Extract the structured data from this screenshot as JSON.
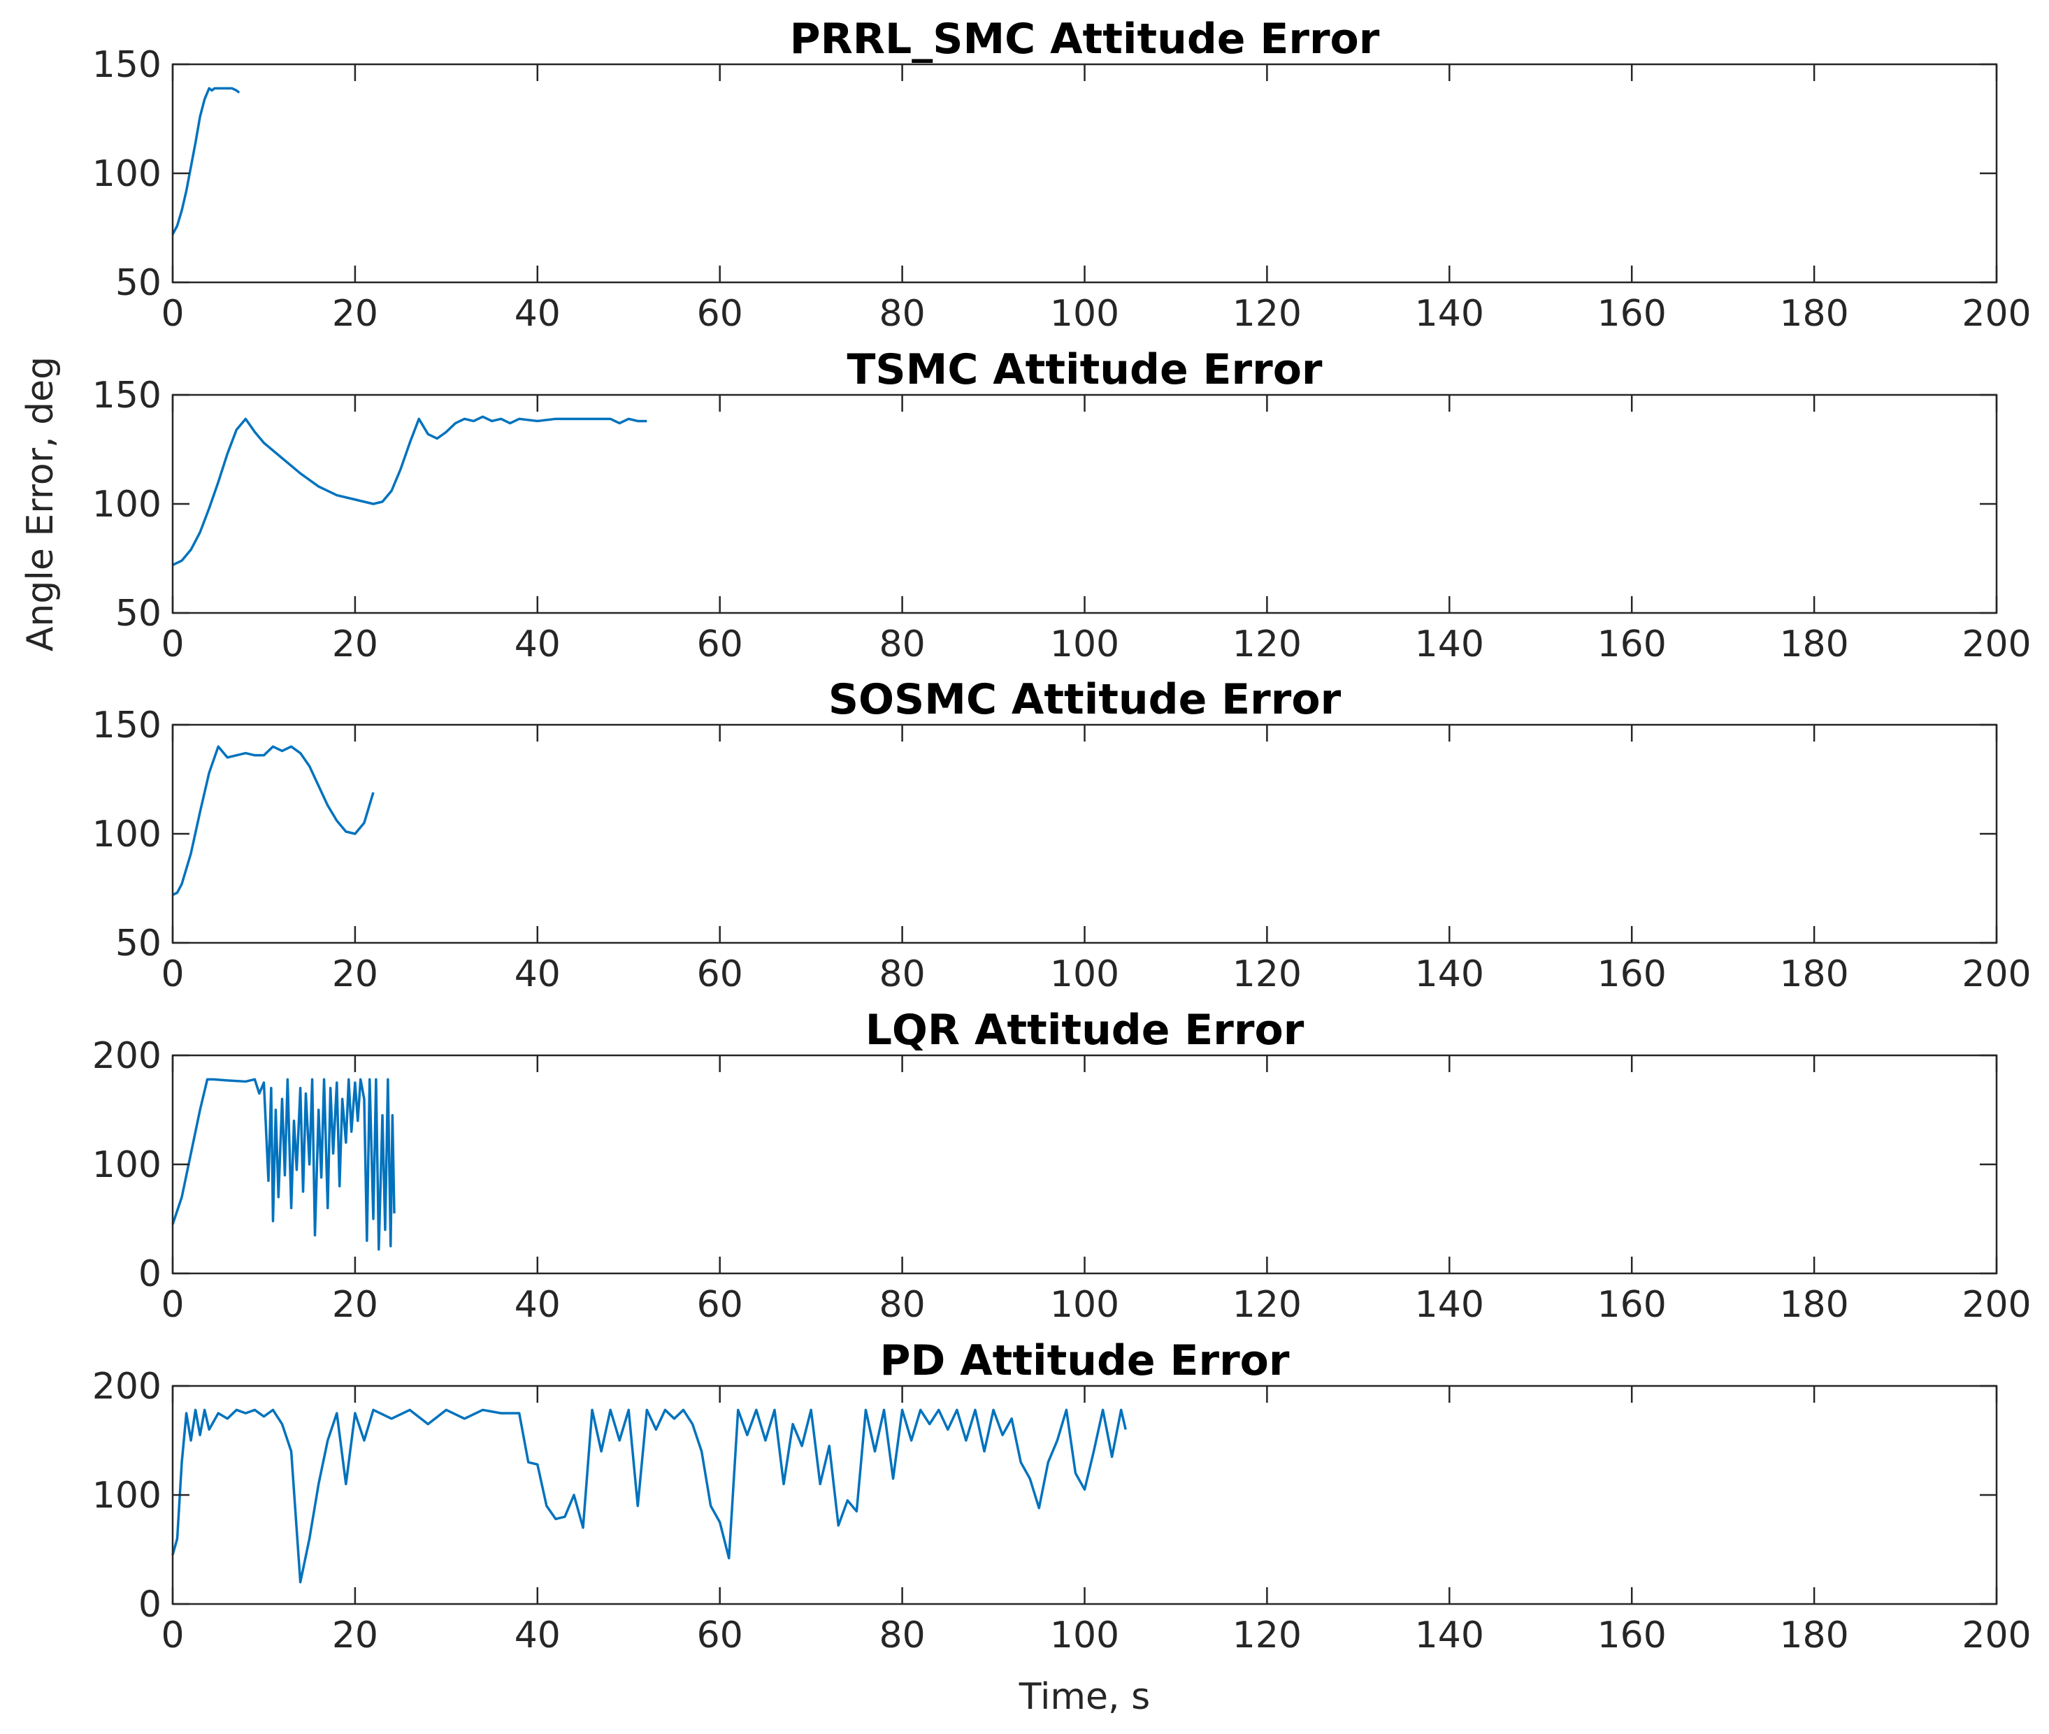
{
  "chart_data": [
    {
      "type": "line",
      "title": "PRRL_SMC Attitude Error",
      "x": [
        0,
        0.5,
        1,
        1.5,
        2,
        2.5,
        3,
        3.5,
        4,
        4.3,
        4.6,
        5,
        5.5,
        6,
        6.5,
        7,
        7.3
      ],
      "series": [
        {
          "color": "#0072bd",
          "values": [
            72,
            76,
            83,
            92,
            103,
            114,
            126,
            134,
            139,
            138,
            139,
            139,
            139,
            139,
            139,
            138,
            137
          ]
        }
      ],
      "xlim": [
        0,
        200
      ],
      "xticks": [
        0,
        20,
        40,
        60,
        80,
        100,
        120,
        140,
        160,
        180,
        200
      ],
      "ylim": [
        50,
        150
      ],
      "yticks": [
        50,
        100,
        150
      ]
    },
    {
      "type": "line",
      "title": "TSMC Attitude Error",
      "ylabel": "Angle Error, deg",
      "x": [
        0,
        1,
        2,
        3,
        4,
        5,
        6,
        7,
        8,
        9,
        10,
        12,
        14,
        16,
        18,
        20,
        22,
        23,
        24,
        25,
        26,
        27,
        28,
        29,
        30,
        31,
        32,
        33,
        34,
        35,
        36,
        37,
        38,
        40,
        42,
        44,
        46,
        48,
        49,
        50,
        51,
        52
      ],
      "series": [
        {
          "color": "#0072bd",
          "values": [
            72,
            74,
            79,
            87,
            98,
            110,
            123,
            134,
            139,
            133,
            128,
            121,
            114,
            108,
            104,
            102,
            100,
            101,
            106,
            116,
            128,
            139,
            132,
            130,
            133,
            137,
            139,
            138,
            140,
            138,
            139,
            137,
            139,
            138,
            139,
            139,
            139,
            139,
            137,
            139,
            138,
            138
          ]
        }
      ],
      "xlim": [
        0,
        200
      ],
      "xticks": [
        0,
        20,
        40,
        60,
        80,
        100,
        120,
        140,
        160,
        180,
        200
      ],
      "ylim": [
        50,
        150
      ],
      "yticks": [
        50,
        100,
        150
      ]
    },
    {
      "type": "line",
      "title": "SOSMC Attitude Error",
      "x": [
        0,
        0.5,
        1,
        2,
        3,
        4,
        5,
        6,
        7,
        8,
        9,
        10,
        11,
        12,
        13,
        14,
        15,
        16,
        17,
        18,
        19,
        20,
        21,
        22
      ],
      "series": [
        {
          "color": "#0072bd",
          "values": [
            72,
            73,
            77,
            91,
            110,
            128,
            140,
            135,
            136,
            137,
            136,
            136,
            140,
            138,
            140,
            137,
            131,
            122,
            113,
            106,
            101,
            100,
            105,
            119
          ]
        }
      ],
      "xlim": [
        0,
        200
      ],
      "xticks": [
        0,
        20,
        40,
        60,
        80,
        100,
        120,
        140,
        160,
        180,
        200
      ],
      "ylim": [
        50,
        150
      ],
      "yticks": [
        50,
        100,
        150
      ]
    },
    {
      "type": "line",
      "title": "LQR Attitude Error",
      "x": [
        0,
        1,
        2,
        3,
        3.8,
        4.5,
        6,
        8,
        9,
        9.5,
        10,
        10.5,
        10.8,
        11,
        11.3,
        11.6,
        12,
        12.3,
        12.6,
        13,
        13.3,
        13.6,
        14,
        14.3,
        14.6,
        15,
        15.3,
        15.6,
        16,
        16.3,
        16.6,
        17,
        17.3,
        17.6,
        18,
        18.3,
        18.6,
        19,
        19.3,
        19.6,
        20,
        20.3,
        20.6,
        21,
        21.3,
        21.6,
        22,
        22.3,
        22.6,
        23,
        23.3,
        23.6,
        23.9,
        24.1,
        24.3
      ],
      "series": [
        {
          "color": "#0072bd",
          "values": [
            45,
            70,
            110,
            150,
            178,
            178,
            177,
            176,
            178,
            165,
            175,
            85,
            170,
            48,
            150,
            70,
            160,
            90,
            178,
            60,
            140,
            95,
            170,
            75,
            165,
            100,
            178,
            35,
            150,
            88,
            178,
            60,
            170,
            110,
            175,
            80,
            160,
            120,
            178,
            130,
            175,
            140,
            178,
            160,
            30,
            178,
            50,
            178,
            22,
            145,
            40,
            178,
            25,
            145,
            55
          ]
        }
      ],
      "xlim": [
        0,
        200
      ],
      "xticks": [
        0,
        20,
        40,
        60,
        80,
        100,
        120,
        140,
        160,
        180,
        200
      ],
      "ylim": [
        0,
        200
      ],
      "yticks": [
        0,
        100,
        200
      ]
    },
    {
      "type": "line",
      "title": "PD Attitude Error",
      "xlabel": "Time, s",
      "x": [
        0,
        0.5,
        1,
        1.5,
        2,
        2.5,
        3,
        3.5,
        4,
        5,
        6,
        7,
        8,
        9,
        10,
        11,
        12,
        13,
        14,
        15,
        16,
        17,
        18,
        19,
        20,
        21,
        22,
        24,
        26,
        28,
        30,
        32,
        34,
        36,
        38,
        39,
        40,
        41,
        42,
        43,
        44,
        45,
        46,
        47,
        48,
        49,
        50,
        51,
        52,
        53,
        54,
        55,
        56,
        57,
        58,
        59,
        60,
        61,
        62,
        63,
        64,
        65,
        66,
        67,
        68,
        69,
        70,
        71,
        72,
        73,
        74,
        75,
        76,
        77,
        78,
        79,
        80,
        81,
        82,
        83,
        84,
        85,
        86,
        87,
        88,
        89,
        90,
        91,
        92,
        93,
        94,
        95,
        96,
        97,
        98,
        99,
        100,
        101,
        102,
        103,
        104,
        104.5
      ],
      "series": [
        {
          "color": "#0072bd",
          "values": [
            45,
            60,
            130,
            175,
            150,
            178,
            155,
            178,
            160,
            175,
            170,
            178,
            175,
            178,
            172,
            178,
            165,
            140,
            20,
            60,
            110,
            150,
            175,
            110,
            175,
            150,
            178,
            170,
            178,
            165,
            178,
            170,
            178,
            175,
            175,
            130,
            128,
            90,
            78,
            80,
            100,
            70,
            178,
            140,
            178,
            150,
            178,
            90,
            178,
            160,
            178,
            170,
            178,
            165,
            140,
            90,
            75,
            42,
            178,
            155,
            178,
            150,
            178,
            110,
            165,
            145,
            178,
            110,
            145,
            72,
            95,
            85,
            178,
            140,
            178,
            115,
            178,
            150,
            178,
            165,
            178,
            160,
            178,
            150,
            178,
            140,
            178,
            155,
            170,
            130,
            115,
            88,
            130,
            150,
            178,
            120,
            105,
            140,
            178,
            135,
            178,
            160
          ]
        }
      ],
      "xlim": [
        0,
        200
      ],
      "xticks": [
        0,
        20,
        40,
        60,
        80,
        100,
        120,
        140,
        160,
        180,
        200
      ],
      "ylim": [
        0,
        200
      ],
      "yticks": [
        0,
        100,
        200
      ]
    }
  ]
}
